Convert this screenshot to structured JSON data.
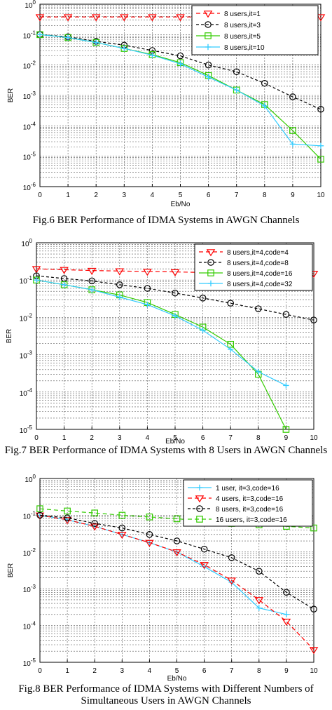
{
  "figures": [
    {
      "caption": "Fig.6 BER Performance of IDMA Systems in AWGN Channels",
      "chart_data": {
        "type": "line",
        "xlabel": "Eb/No",
        "ylabel": "BER",
        "xlim": [
          0,
          10
        ],
        "ylim": [
          1e-06,
          1
        ],
        "yscale": "log",
        "xticks": [
          "0",
          "1",
          "2",
          "3",
          "4",
          "5",
          "6",
          "7",
          "8",
          "9",
          "10"
        ],
        "yticks": [
          {
            "base": "10",
            "exp": "0"
          },
          {
            "base": "10",
            "exp": "-1"
          },
          {
            "base": "10",
            "exp": "-2"
          },
          {
            "base": "10",
            "exp": "-3"
          },
          {
            "base": "10",
            "exp": "-4"
          },
          {
            "base": "10",
            "exp": "-5"
          },
          {
            "base": "10",
            "exp": "-6"
          }
        ],
        "grid": true,
        "legend_position": "top-right",
        "series": [
          {
            "name": "8 users,it=1",
            "color": "#ff0000",
            "dash": "6,4",
            "marker": "triangle-down",
            "x": [
              0,
              1,
              2,
              3,
              4,
              5,
              6,
              7,
              8,
              9,
              10
            ],
            "y": [
              0.38,
              0.38,
              0.38,
              0.38,
              0.38,
              0.38,
              0.38,
              0.38,
              0.38,
              0.38,
              0.38
            ]
          },
          {
            "name": "8 users,it=3",
            "color": "#000000",
            "dash": "4,3",
            "marker": "circle",
            "x": [
              0,
              1,
              2,
              3,
              4,
              5,
              6,
              7,
              8,
              9,
              10
            ],
            "y": [
              0.1,
              0.085,
              0.06,
              0.045,
              0.03,
              0.02,
              0.01,
              0.006,
              0.0025,
              0.0009,
              0.00035
            ]
          },
          {
            "name": "8 users,it=5",
            "color": "#33cc00",
            "dash": "",
            "marker": "square",
            "x": [
              0,
              1,
              2,
              3,
              4,
              5,
              6,
              7,
              8,
              9,
              10
            ],
            "y": [
              0.1,
              0.08,
              0.055,
              0.035,
              0.022,
              0.012,
              0.0045,
              0.0015,
              0.0005,
              7e-05,
              8e-06
            ]
          },
          {
            "name": "8 users,it=10",
            "color": "#33ccff",
            "dash": "",
            "marker": "plus",
            "x": [
              0,
              1,
              2,
              3,
              4,
              5,
              6,
              7,
              8,
              9,
              10
            ],
            "y": [
              0.1,
              0.08,
              0.055,
              0.035,
              0.021,
              0.011,
              0.004,
              0.0015,
              0.00045,
              2.5e-05,
              2.2e-05
            ]
          }
        ]
      }
    },
    {
      "caption": "Fig.7 BER Performance of IDMA Systems with 8 Users  in AWGN Channels",
      "chart_data": {
        "type": "line",
        "xlabel": "Eb/No",
        "ylabel": "BER",
        "xlim": [
          0,
          10
        ],
        "ylim": [
          1e-05,
          1
        ],
        "yscale": "log",
        "xticks": [
          "0",
          "1",
          "2",
          "3",
          "4",
          "5",
          "6",
          "7",
          "8",
          "9",
          "10"
        ],
        "yticks": [
          {
            "base": "10",
            "exp": "0"
          },
          {
            "base": "10",
            "exp": "-1"
          },
          {
            "base": "10",
            "exp": "-2"
          },
          {
            "base": "10",
            "exp": "-3"
          },
          {
            "base": "10",
            "exp": "-4"
          },
          {
            "base": "10",
            "exp": "-5"
          }
        ],
        "grid": true,
        "legend_position": "top-right",
        "series": [
          {
            "name": "8 users,it=4,code=4",
            "color": "#ff0000",
            "dash": "6,4",
            "marker": "triangle-down",
            "x": [
              0,
              1,
              2,
              3,
              4,
              5,
              6,
              7,
              8,
              9,
              10
            ],
            "y": [
              0.2,
              0.19,
              0.18,
              0.175,
              0.17,
              0.165,
              0.16,
              0.155,
              0.155,
              0.15,
              0.15
            ]
          },
          {
            "name": "8 users,it=4,code=8",
            "color": "#000000",
            "dash": "4,3",
            "marker": "circle",
            "x": [
              0,
              1,
              2,
              3,
              4,
              5,
              6,
              7,
              8,
              9,
              10
            ],
            "y": [
              0.13,
              0.11,
              0.095,
              0.075,
              0.06,
              0.045,
              0.033,
              0.024,
              0.017,
              0.012,
              0.0085
            ]
          },
          {
            "name": "8 users,it=4,code=16",
            "color": "#33cc00",
            "dash": "",
            "marker": "square",
            "x": [
              0,
              1,
              2,
              3,
              4,
              5,
              6,
              7,
              8,
              9
            ],
            "y": [
              0.1,
              0.075,
              0.055,
              0.04,
              0.025,
              0.012,
              0.0055,
              0.0019,
              0.0003,
              1e-05
            ]
          },
          {
            "name": "8 users,it=4,code=32",
            "color": "#33ccff",
            "dash": "",
            "marker": "plus",
            "x": [
              0,
              1,
              2,
              3,
              4,
              5,
              6,
              7,
              8,
              9
            ],
            "y": [
              0.1,
              0.075,
              0.055,
              0.035,
              0.022,
              0.011,
              0.0045,
              0.0014,
              0.00035,
              0.00015
            ]
          }
        ]
      }
    },
    {
      "caption": "Fig.8 BER Performance of IDMA Systems with Different Numbers of Simultaneous Users in AWGN Channels",
      "chart_data": {
        "type": "line",
        "xlabel": "Eb/No",
        "ylabel": "BER",
        "xlim": [
          0,
          10
        ],
        "ylim": [
          1e-05,
          1
        ],
        "yscale": "log",
        "xticks": [
          "0",
          "1",
          "2",
          "3",
          "4",
          "5",
          "6",
          "7",
          "8",
          "9",
          "10"
        ],
        "yticks": [
          {
            "base": "10",
            "exp": "0"
          },
          {
            "base": "10",
            "exp": "-1"
          },
          {
            "base": "10",
            "exp": "-2"
          },
          {
            "base": "10",
            "exp": "-3"
          },
          {
            "base": "10",
            "exp": "-4"
          },
          {
            "base": "10",
            "exp": "-5"
          }
        ],
        "grid": true,
        "legend_position": "top-right",
        "series": [
          {
            "name": "1  user, it=3,code=16",
            "color": "#33ccff",
            "dash": "",
            "marker": "plus",
            "x": [
              0,
              1,
              2,
              3,
              4,
              5,
              6,
              7,
              8,
              9
            ],
            "y": [
              0.1,
              0.075,
              0.05,
              0.03,
              0.018,
              0.01,
              0.004,
              0.0015,
              0.0003,
              0.0002
            ]
          },
          {
            "name": "4 users, it=3,code=16",
            "color": "#ff0000",
            "dash": "6,4",
            "marker": "triangle-down",
            "x": [
              0,
              1,
              2,
              3,
              4,
              5,
              6,
              7,
              8,
              9,
              10
            ],
            "y": [
              0.1,
              0.075,
              0.05,
              0.03,
              0.018,
              0.01,
              0.0045,
              0.0017,
              0.0005,
              0.00013,
              2.2e-05
            ]
          },
          {
            "name": "8 users, it=3,code=16",
            "color": "#000000",
            "dash": "4,3",
            "marker": "circle",
            "x": [
              0,
              1,
              2,
              3,
              4,
              5,
              6,
              7,
              8,
              9,
              10
            ],
            "y": [
              0.1,
              0.085,
              0.06,
              0.045,
              0.03,
              0.02,
              0.012,
              0.007,
              0.003,
              0.0008,
              0.00028
            ]
          },
          {
            "name": "16 users, it=3,code=16",
            "color": "#33cc00",
            "dash": "6,4",
            "marker": "square",
            "x": [
              0,
              1,
              2,
              3,
              4,
              5,
              6,
              7,
              8,
              9,
              10
            ],
            "y": [
              0.15,
              0.13,
              0.115,
              0.1,
              0.09,
              0.08,
              0.07,
              0.06,
              0.055,
              0.05,
              0.045
            ]
          }
        ]
      }
    }
  ]
}
